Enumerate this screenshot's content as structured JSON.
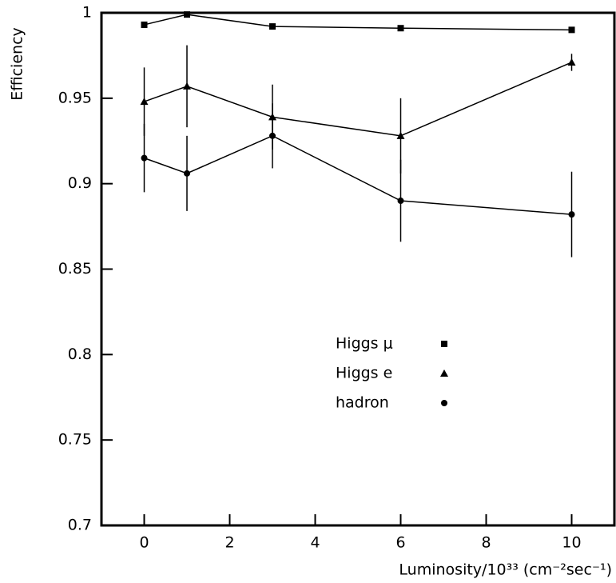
{
  "chart_data": {
    "type": "line",
    "x_label": "Luminosity/10³³ (cm⁻²sec⁻¹)",
    "y_label": "Efficiency",
    "xlim": [
      -1,
      11
    ],
    "xticks": [
      0,
      2,
      4,
      6,
      8,
      10
    ],
    "ylim": [
      0.7,
      1
    ],
    "yticks": [
      0.7,
      0.75,
      0.8,
      0.85,
      0.9,
      0.95,
      1
    ],
    "x": [
      0,
      1,
      3,
      6,
      10
    ],
    "series": [
      {
        "name": "Higgs μ",
        "color": "#000000",
        "marker": "square",
        "values": [
          0.993,
          0.999,
          0.992,
          0.991,
          0.99
        ]
      },
      {
        "name": "Higgs e",
        "color": "#000000",
        "marker": "triangle",
        "values": [
          0.948,
          0.957,
          0.939,
          0.928,
          0.971
        ],
        "errors": [
          0.02,
          0.024,
          0.019,
          0.022,
          0.005
        ]
      },
      {
        "name": "hadron",
        "color": "#000000",
        "marker": "circle",
        "values": [
          0.915,
          0.906,
          0.928,
          0.89,
          0.882
        ],
        "errors": [
          0.02,
          0.022,
          0.019,
          0.024,
          0.025
        ]
      }
    ]
  }
}
